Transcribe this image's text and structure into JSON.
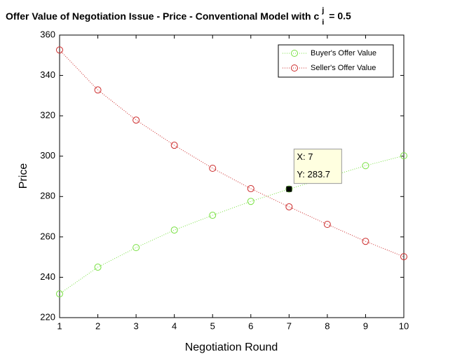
{
  "chart_data": {
    "type": "line",
    "title": "Offer Value of Negotiation Issue - Price - Conventional Model with c",
    "title_superscript": "j",
    "title_subscript": "i",
    "title_suffix": "= 0.5",
    "xlabel": "Negotiation Round",
    "ylabel": "Price",
    "x": [
      1,
      2,
      3,
      4,
      5,
      6,
      7,
      8,
      9,
      10
    ],
    "series": [
      {
        "name": "Buyer's Offer Value",
        "color": "#77e040",
        "values": [
          231.8,
          245,
          254.7,
          263.4,
          270.7,
          277.6,
          283.7,
          289.5,
          295.3,
          300.2
        ]
      },
      {
        "name": "Seller's Offer Value",
        "color": "#cc2a2a",
        "values": [
          352.6,
          332.8,
          317.9,
          305.4,
          294,
          283.9,
          274.9,
          266.2,
          257.8,
          250.2
        ]
      }
    ],
    "xlim": [
      1,
      10
    ],
    "xticks": [
      1,
      2,
      3,
      4,
      5,
      6,
      7,
      8,
      9,
      10
    ],
    "ylim": [
      220,
      360
    ],
    "yticks": [
      220,
      240,
      260,
      280,
      300,
      320,
      340,
      360
    ],
    "legend": "top-right",
    "annotation": {
      "x": 7,
      "y": 283.7,
      "labels": [
        "X: 7",
        "Y: 283.7"
      ]
    }
  }
}
